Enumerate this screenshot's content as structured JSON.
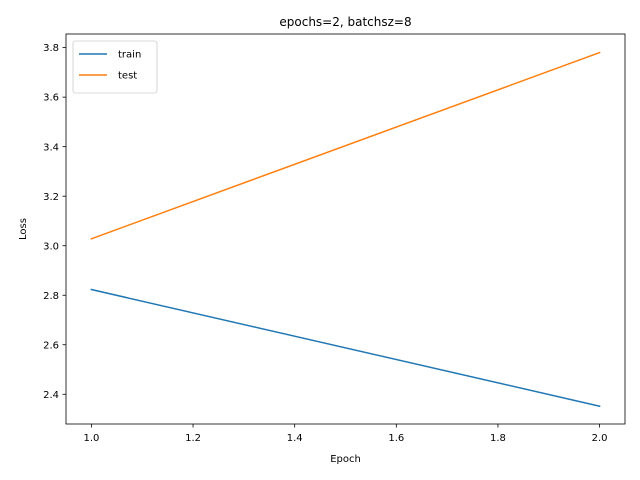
{
  "chart_data": {
    "type": "line",
    "title": "epochs=2, batchsz=8",
    "xlabel": "Epoch",
    "ylabel": "Loss",
    "xlim": [
      0.95,
      2.05
    ],
    "ylim": [
      2.28,
      3.855
    ],
    "xticks": [
      1.0,
      1.2,
      1.4,
      1.6,
      1.8,
      2.0
    ],
    "xtick_labels": [
      "1.0",
      "1.2",
      "1.4",
      "1.6",
      "1.8",
      "2.0"
    ],
    "yticks": [
      2.4,
      2.6,
      2.8,
      3.0,
      3.2,
      3.4,
      3.6,
      3.8
    ],
    "ytick_labels": [
      "2.4",
      "2.6",
      "2.8",
      "3.0",
      "3.2",
      "3.4",
      "3.6",
      "3.8"
    ],
    "grid": false,
    "legend_position": "top-left",
    "series": [
      {
        "name": "train",
        "color": "#1f77b4",
        "x": [
          1,
          2
        ],
        "y": [
          2.823,
          2.352
        ]
      },
      {
        "name": "test",
        "color": "#ff7f0e",
        "x": [
          1,
          2
        ],
        "y": [
          3.028,
          3.78
        ]
      }
    ]
  }
}
